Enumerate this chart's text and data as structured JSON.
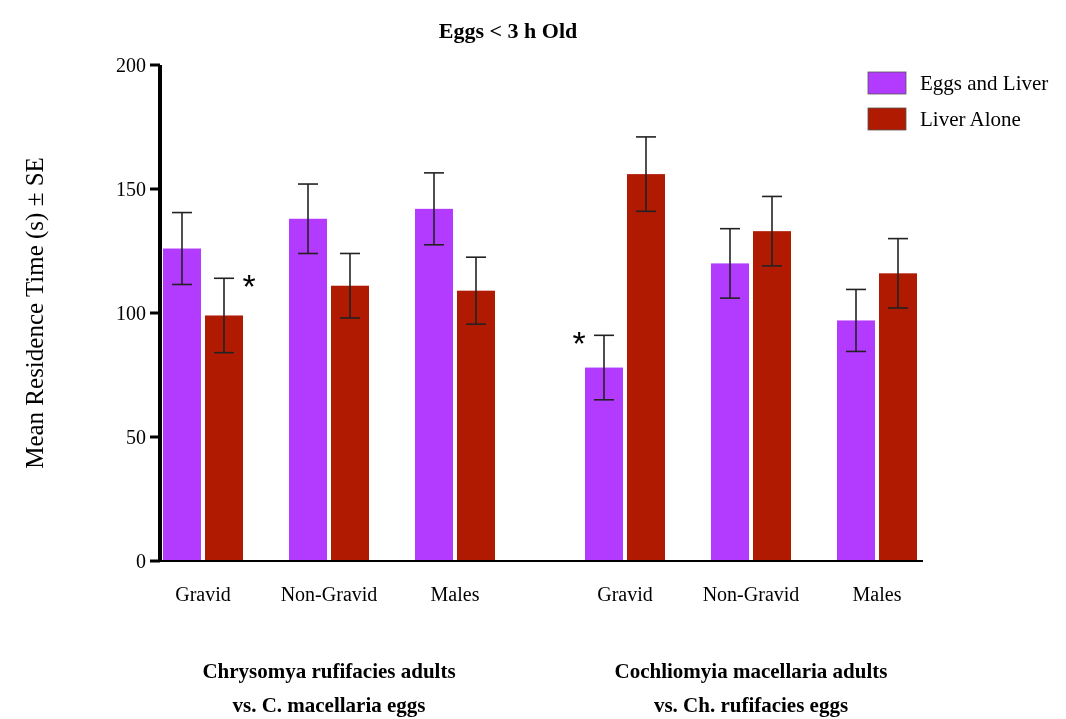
{
  "chart_data": {
    "type": "bar",
    "title": "Eggs < 3 h Old",
    "ylabel": "Mean Residence Time (s) ± SE",
    "categories": [
      "Gravid",
      "Non-Gravid",
      "Males",
      null,
      "Gravid",
      "Non-Gravid",
      "Males"
    ],
    "series": [
      {
        "name": "Eggs and Liver",
        "color": "#b33bff",
        "values": [
          126,
          138,
          142,
          null,
          78,
          120,
          97
        ],
        "errors": [
          14.5,
          14,
          14.5,
          null,
          13,
          14,
          12.5
        ],
        "value_labels": [
          null,
          null,
          null,
          null,
          "*",
          null,
          null
        ]
      },
      {
        "name": "Liver Alone",
        "color": "#b01a00",
        "values": [
          99,
          111,
          109,
          null,
          156,
          133,
          116
        ],
        "errors": [
          15,
          13,
          13.5,
          null,
          15,
          14,
          14
        ],
        "value_labels": [
          "*",
          null,
          null,
          null,
          null,
          null,
          null
        ]
      }
    ],
    "ylim": [
      0,
      200
    ],
    "yticks": [
      0,
      50,
      100,
      150,
      200
    ],
    "grid": false,
    "legend": "top right",
    "annotations": [
      "Chrysomya rufifacies adults\nvs. C. macellaria eggs",
      "Cochliomyia macellaria adults\nvs. Ch. rufifacies eggs"
    ]
  }
}
